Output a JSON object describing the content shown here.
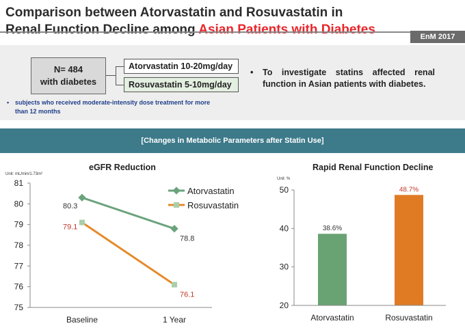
{
  "header": {
    "title_line1": "Comparison between Atorvastatin and Rosuvastatin in",
    "title_line2_prefix": "Renal Function Decline among ",
    "title_line2_accent": "Asian Patients with Diabetes",
    "journal": "EnM  2017"
  },
  "study": {
    "n_line1": "N= 484",
    "n_line2": "with diabetes",
    "arm1": "Atorvastatin 10-20mg/day",
    "arm2": "Rosuvastatin 5-10mg/day",
    "note_bullet": "•",
    "note": "subjects who received moderate-intensity dose treatment for more than 12 months",
    "objective_bullet": "•",
    "objective": "To investigate statins affected renal function in Asian patients with diabetes."
  },
  "section_title": "[Changes in Metabolic Parameters after Statin Use]",
  "colors": {
    "atorvastatin_line": "#6aa37c",
    "rosuvastatin_line": "#e58a2b",
    "atorvastatin_bar": "#6aa373",
    "rosuvastatin_bar": "#e07b24",
    "rosuvastatin_label": "#c0392b",
    "band": "#3d7a8a"
  },
  "chart_data": [
    {
      "type": "line",
      "title": "eGFR Reduction",
      "unit": "Unit: mL/min/1.73m²",
      "categories": [
        "Baseline",
        "1 Year"
      ],
      "ylim": [
        75,
        81
      ],
      "yticks": [
        "75",
        "76",
        "77",
        "78",
        "79",
        "80",
        "81"
      ],
      "grid": false,
      "legend_position": "top-right",
      "series": [
        {
          "name": "Atorvastatin",
          "values": [
            80.3,
            78.8
          ],
          "labels": [
            "80.3",
            "78.8"
          ]
        },
        {
          "name": "Rosuvastatin",
          "values": [
            79.1,
            76.1
          ],
          "labels": [
            "79.1",
            "76.1"
          ]
        }
      ]
    },
    {
      "type": "bar",
      "title": "Rapid Renal Function Decline",
      "unit": "Unit: %",
      "categories": [
        "Atorvastatin",
        "Rosuvastatin"
      ],
      "ylim": [
        20,
        50
      ],
      "yticks": [
        "20",
        "30",
        "40",
        "50"
      ],
      "grid": false,
      "values": [
        38.6,
        48.7
      ],
      "labels": [
        "38.6%",
        "48.7%"
      ]
    }
  ]
}
